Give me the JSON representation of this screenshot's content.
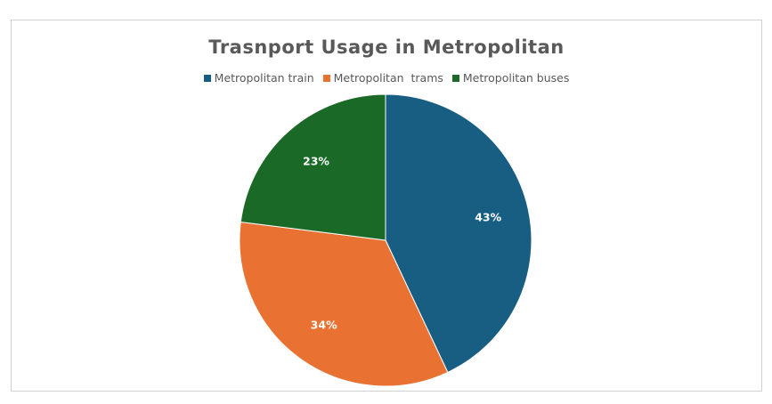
{
  "chart_data": {
    "type": "pie",
    "title": "Trasnport Usage in Metropolitan",
    "legend_position": "top",
    "start_angle_deg": 0,
    "direction": "clockwise",
    "series": [
      {
        "name": "Metropolitan train",
        "value": 43,
        "label": "43%",
        "color": "#175e82"
      },
      {
        "name": "Metropolitan  trams",
        "value": 34,
        "label": "34%",
        "color": "#e97132"
      },
      {
        "name": "Metropolitan buses",
        "value": 23,
        "label": "23%",
        "color": "#1a6927"
      }
    ]
  }
}
